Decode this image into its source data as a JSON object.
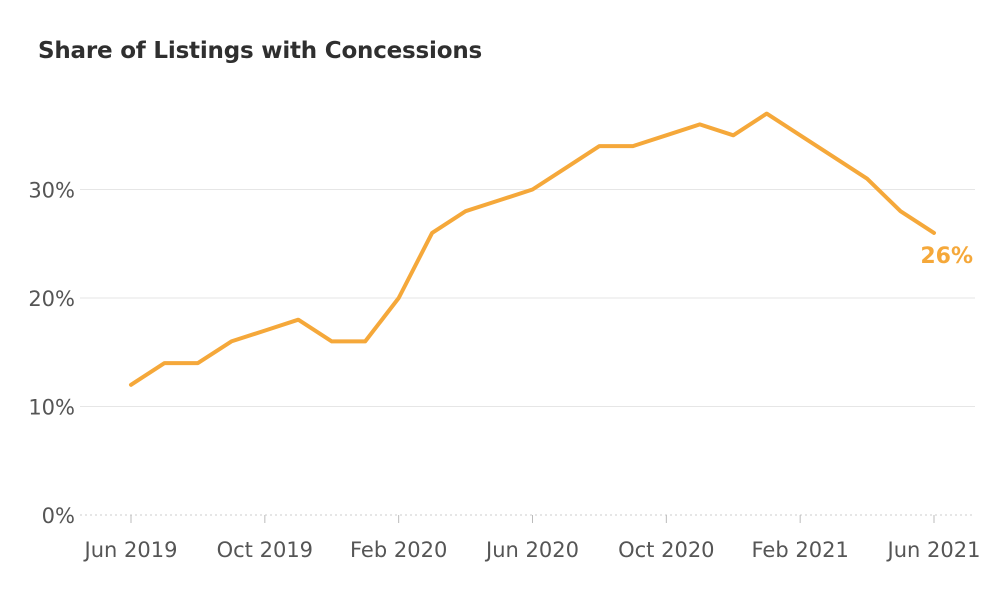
{
  "chart_data": {
    "type": "line",
    "title": "Share of Listings with Concessions",
    "xlabel": "",
    "ylabel": "",
    "x": [
      "2019-06",
      "2019-07",
      "2019-08",
      "2019-09",
      "2019-10",
      "2019-11",
      "2019-12",
      "2020-01",
      "2020-02",
      "2020-03",
      "2020-04",
      "2020-05",
      "2020-06",
      "2020-07",
      "2020-08",
      "2020-09",
      "2020-10",
      "2020-11",
      "2020-12",
      "2021-01",
      "2021-02",
      "2021-03",
      "2021-04",
      "2021-05",
      "2021-06"
    ],
    "series": [
      {
        "name": "",
        "color": "#f5a83a",
        "values": [
          12,
          14,
          14,
          16,
          17,
          18,
          16,
          16,
          20,
          26,
          28,
          29,
          30,
          32,
          34,
          34,
          35,
          36,
          35,
          37,
          35,
          33,
          31,
          28,
          26
        ]
      }
    ],
    "x_ticks": [
      {
        "x": "2019-06",
        "label": "Jun 2019"
      },
      {
        "x": "2019-10",
        "label": "Oct 2019"
      },
      {
        "x": "2020-02",
        "label": "Feb 2020"
      },
      {
        "x": "2020-06",
        "label": "Jun 2020"
      },
      {
        "x": "2020-10",
        "label": "Oct 2020"
      },
      {
        "x": "2021-02",
        "label": "Feb 2021"
      },
      {
        "x": "2021-06",
        "label": "Jun 2021"
      }
    ],
    "y_ticks": [
      {
        "value": 0,
        "label": "0%"
      },
      {
        "value": 10,
        "label": "10%"
      },
      {
        "value": 20,
        "label": "20%"
      },
      {
        "value": 30,
        "label": "30%"
      }
    ],
    "ylim": [
      0,
      40
    ],
    "grid": true,
    "end_label": "26%",
    "colors": {
      "line": "#f5a83a",
      "grid": "#e6e6e6",
      "axis_text": "#555555",
      "title": "#2f2f2f"
    }
  }
}
